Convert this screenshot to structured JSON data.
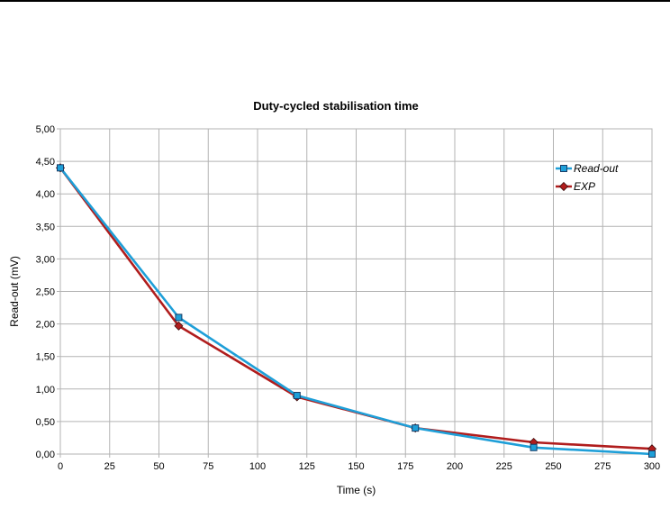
{
  "chart_data": {
    "type": "line",
    "title": "Duty-cycled stabilisation time",
    "xlabel": "Time (s)",
    "ylabel": "Read-out (mV)",
    "xlim": [
      0,
      300
    ],
    "ylim": [
      0,
      5
    ],
    "x_ticks": [
      "0",
      "25",
      "50",
      "75",
      "100",
      "125",
      "150",
      "175",
      "200",
      "225",
      "250",
      "275",
      "300"
    ],
    "y_ticks": [
      "0,00",
      "0,50",
      "1,00",
      "1,50",
      "2,00",
      "2,50",
      "3,00",
      "3,50",
      "4,00",
      "4,50",
      "5,00"
    ],
    "grid": true,
    "legend_position": "top-right",
    "series": [
      {
        "name": "Read-out",
        "color": "#1e9fd8",
        "marker": "square",
        "x": [
          0,
          60,
          120,
          180,
          240,
          300
        ],
        "y": [
          4.4,
          2.1,
          0.9,
          0.4,
          0.1,
          0.0
        ]
      },
      {
        "name": "EXP",
        "color": "#b01d1d",
        "marker": "diamond",
        "x": [
          0,
          60,
          120,
          180,
          240,
          300
        ],
        "y": [
          4.4,
          1.97,
          0.88,
          0.4,
          0.18,
          0.08
        ]
      }
    ]
  }
}
